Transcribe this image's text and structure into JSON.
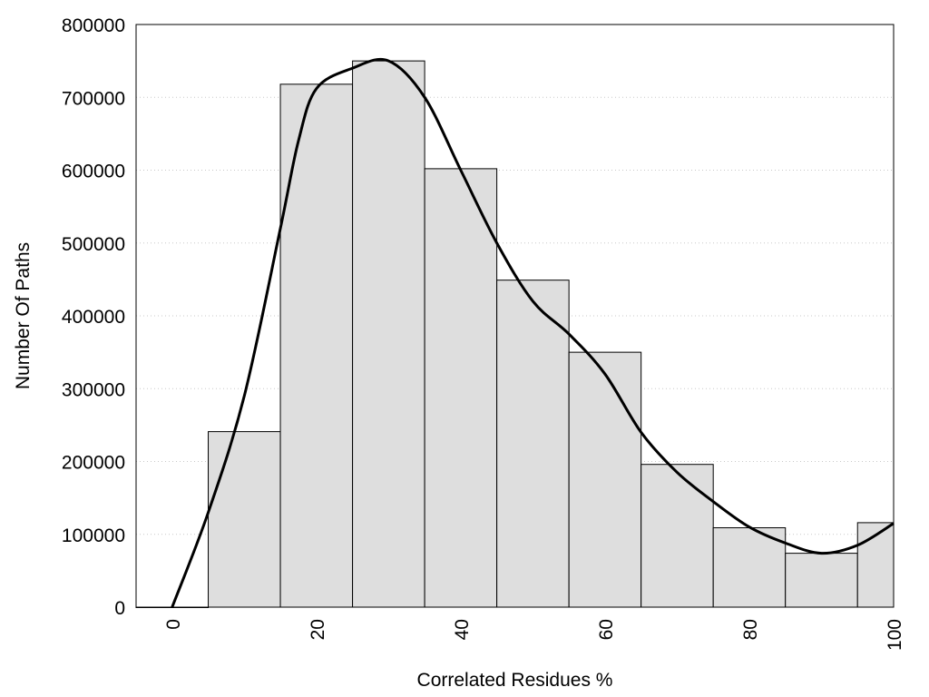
{
  "chart_data": {
    "type": "bar",
    "xlabel": "Correlated Residues %",
    "ylabel": "Number Of Paths",
    "xlim": [
      -5,
      100
    ],
    "ylim": [
      0,
      800000
    ],
    "x_ticks": [
      0,
      20,
      40,
      60,
      80,
      100
    ],
    "y_ticks": [
      0,
      100000,
      200000,
      300000,
      400000,
      500000,
      600000,
      700000,
      800000
    ],
    "grid": "horizontal dotted",
    "bar_color": "#dedede",
    "bar_width": 10,
    "bars": [
      {
        "x": 0,
        "value": 0
      },
      {
        "x": 10,
        "value": 241000
      },
      {
        "x": 20,
        "value": 718000
      },
      {
        "x": 30,
        "value": 750000
      },
      {
        "x": 40,
        "value": 602000
      },
      {
        "x": 50,
        "value": 449000
      },
      {
        "x": 60,
        "value": 350000
      },
      {
        "x": 70,
        "value": 196000
      },
      {
        "x": 80,
        "value": 109000
      },
      {
        "x": 90,
        "value": 74000
      },
      {
        "x": 100,
        "value": 116000
      }
    ],
    "curve": {
      "x": [
        0,
        5,
        10,
        15,
        17.5,
        20,
        25,
        30,
        35,
        40,
        45,
        50,
        55,
        60,
        65,
        70,
        75,
        80,
        85,
        90,
        95,
        100
      ],
      "y": [
        0,
        130000,
        290000,
        520000,
        640000,
        712000,
        740000,
        750000,
        700000,
        600000,
        500000,
        420000,
        375000,
        320000,
        240000,
        185000,
        145000,
        110000,
        88000,
        74000,
        85000,
        115000
      ]
    }
  }
}
